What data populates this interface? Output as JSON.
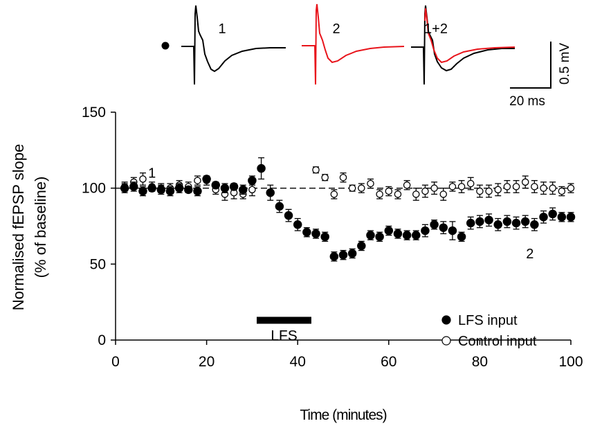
{
  "colors": {
    "lfs": "#000000",
    "control": "#ffffff",
    "trace2": "#e8141b"
  },
  "traces": {
    "label_1": "1",
    "label_2": "2",
    "label_12": "1+2",
    "scale_y": "0.5 mV",
    "scale_x": "20 ms",
    "marker": "filled-circle"
  },
  "chart_data": {
    "type": "scatter",
    "title": "",
    "xlabel": "Time (minutes)",
    "ylabel_line1": "Normalised fEPSP slope",
    "ylabel_line2": "(% of baseline)",
    "xlim": [
      0,
      100
    ],
    "ylim": [
      0,
      150
    ],
    "xticks": [
      "0",
      "20",
      "40",
      "60",
      "80",
      "100"
    ],
    "yticks": [
      "0",
      "50",
      "100",
      "150"
    ],
    "x": [
      2,
      4,
      6,
      8,
      10,
      12,
      14,
      16,
      18,
      20,
      22,
      24,
      26,
      28,
      30,
      32,
      34,
      36,
      38,
      40,
      42,
      44,
      46,
      48,
      50,
      52,
      54,
      56,
      58,
      60,
      62,
      64,
      66,
      68,
      70,
      72,
      74,
      76,
      78,
      80,
      82,
      84,
      86,
      88,
      90,
      92,
      94,
      96,
      98,
      100
    ],
    "series": [
      {
        "name": "LFS input",
        "marker": "filled",
        "values": [
          100,
          101,
          98,
          100,
          99,
          98,
          100,
          99,
          98,
          106,
          102,
          100,
          101,
          99,
          105,
          113,
          97,
          88,
          82,
          76,
          71,
          70,
          68,
          55,
          56,
          57,
          62,
          69,
          68,
          72,
          70,
          69,
          69,
          72,
          76,
          74,
          72,
          68,
          77,
          78,
          79,
          76,
          78,
          77,
          78,
          76,
          81,
          83,
          81,
          81
        ],
        "errors": [
          3,
          3,
          3,
          2,
          3,
          3,
          3,
          2,
          3,
          2,
          2,
          3,
          2,
          3,
          3,
          7,
          5,
          4,
          4,
          4,
          3,
          3,
          3,
          3,
          3,
          3,
          3,
          3,
          3,
          3,
          3,
          3,
          3,
          4,
          3,
          4,
          6,
          3,
          4,
          4,
          4,
          4,
          4,
          4,
          4,
          4,
          4,
          4,
          3,
          3
        ]
      },
      {
        "name": "Control input",
        "marker": "open",
        "values": [
          101,
          104,
          106,
          101,
          100,
          100,
          102,
          101,
          105,
          105,
          99,
          96,
          97,
          96,
          99,
          null,
          null,
          null,
          null,
          null,
          null,
          112,
          107,
          96,
          107,
          100,
          100,
          103,
          96,
          98,
          96,
          102,
          96,
          98,
          100,
          96,
          101,
          101,
          103,
          98,
          98,
          99,
          101,
          101,
          104,
          101,
          100,
          100,
          98,
          100
        ],
        "errors": [
          3,
          3,
          4,
          3,
          3,
          3,
          3,
          3,
          3,
          3,
          3,
          4,
          4,
          3,
          4,
          null,
          null,
          null,
          null,
          null,
          null,
          2,
          2,
          3,
          3,
          2,
          3,
          3,
          3,
          3,
          3,
          3,
          4,
          4,
          4,
          4,
          3,
          4,
          4,
          4,
          4,
          4,
          4,
          4,
          4,
          4,
          4,
          4,
          3,
          3
        ]
      }
    ],
    "reference_line": {
      "y": 100,
      "style": "dashed"
    },
    "annotations": [
      {
        "text": "1",
        "x": 8,
        "y": 110
      },
      {
        "text": "2",
        "x": 91,
        "y": 57
      }
    ],
    "bar": {
      "label": "LFS",
      "x_start": 31,
      "x_end": 43,
      "y": 13
    },
    "legend": {
      "position": "bottom-right",
      "entries": [
        "LFS input",
        "Control input"
      ]
    }
  }
}
